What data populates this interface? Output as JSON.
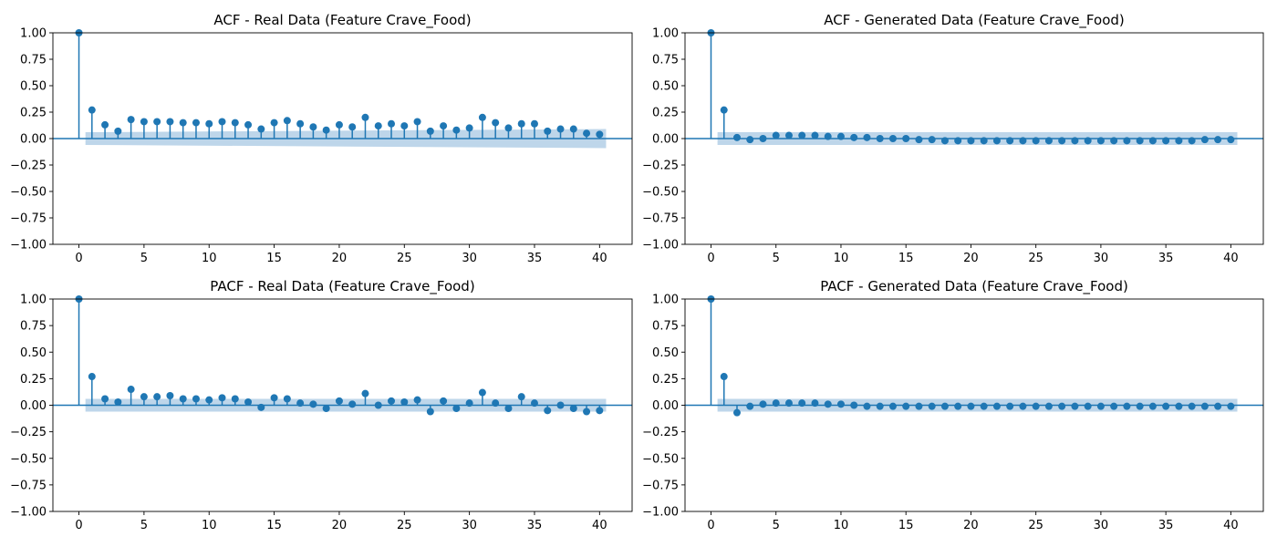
{
  "chart_data": [
    {
      "type": "stem",
      "title": "ACF - Real Data (Feature Crave_Food)",
      "xlabel": "",
      "ylabel": "",
      "xlim": [
        -2,
        42.5
      ],
      "ylim": [
        -1,
        1
      ],
      "xticks": [
        0,
        5,
        10,
        15,
        20,
        25,
        30,
        35,
        40
      ],
      "yticks": [
        -1.0,
        -0.75,
        -0.5,
        -0.25,
        0.0,
        0.25,
        0.5,
        0.75,
        1.0
      ],
      "ytick_labels": [
        "−1.00",
        "−0.75",
        "−0.50",
        "−0.25",
        "0.00",
        "0.25",
        "0.50",
        "0.75",
        "1.00"
      ],
      "xtick_labels": [
        "0",
        "5",
        "10",
        "15",
        "20",
        "25",
        "30",
        "35",
        "40"
      ],
      "confidence_band": {
        "from_lag": 0.5,
        "to_lag": 40.5,
        "upper": [
          0.06,
          0.09
        ],
        "lower": [
          -0.06,
          -0.09
        ]
      },
      "color": "#1f77b4",
      "band_color": "#b7d1e8",
      "lags": [
        0,
        1,
        2,
        3,
        4,
        5,
        6,
        7,
        8,
        9,
        10,
        11,
        12,
        13,
        14,
        15,
        16,
        17,
        18,
        19,
        20,
        21,
        22,
        23,
        24,
        25,
        26,
        27,
        28,
        29,
        30,
        31,
        32,
        33,
        34,
        35,
        36,
        37,
        38,
        39,
        40
      ],
      "values": [
        1.0,
        0.27,
        0.13,
        0.07,
        0.18,
        0.16,
        0.16,
        0.16,
        0.15,
        0.15,
        0.14,
        0.16,
        0.15,
        0.13,
        0.09,
        0.15,
        0.17,
        0.14,
        0.11,
        0.08,
        0.13,
        0.11,
        0.2,
        0.12,
        0.14,
        0.12,
        0.16,
        0.07,
        0.12,
        0.08,
        0.1,
        0.2,
        0.15,
        0.1,
        0.14,
        0.14,
        0.07,
        0.09,
        0.09,
        0.05,
        0.04
      ]
    },
    {
      "type": "stem",
      "title": "ACF - Generated Data (Feature Crave_Food)",
      "xlabel": "",
      "ylabel": "",
      "xlim": [
        -2,
        42.5
      ],
      "ylim": [
        -1,
        1
      ],
      "xticks": [
        0,
        5,
        10,
        15,
        20,
        25,
        30,
        35,
        40
      ],
      "yticks": [
        -1.0,
        -0.75,
        -0.5,
        -0.25,
        0.0,
        0.25,
        0.5,
        0.75,
        1.0
      ],
      "ytick_labels": [
        "−1.00",
        "−0.75",
        "−0.50",
        "−0.25",
        "0.00",
        "0.25",
        "0.50",
        "0.75",
        "1.00"
      ],
      "xtick_labels": [
        "0",
        "5",
        "10",
        "15",
        "20",
        "25",
        "30",
        "35",
        "40"
      ],
      "confidence_band": {
        "from_lag": 0.5,
        "to_lag": 40.5,
        "upper": [
          0.06,
          0.06
        ],
        "lower": [
          -0.06,
          -0.06
        ]
      },
      "color": "#1f77b4",
      "band_color": "#b7d1e8",
      "lags": [
        0,
        1,
        2,
        3,
        4,
        5,
        6,
        7,
        8,
        9,
        10,
        11,
        12,
        13,
        14,
        15,
        16,
        17,
        18,
        19,
        20,
        21,
        22,
        23,
        24,
        25,
        26,
        27,
        28,
        29,
        30,
        31,
        32,
        33,
        34,
        35,
        36,
        37,
        38,
        39,
        40
      ],
      "values": [
        1.0,
        0.27,
        0.01,
        -0.01,
        0.0,
        0.03,
        0.03,
        0.03,
        0.03,
        0.02,
        0.02,
        0.01,
        0.01,
        0.0,
        0.0,
        0.0,
        -0.01,
        -0.01,
        -0.02,
        -0.02,
        -0.02,
        -0.02,
        -0.02,
        -0.02,
        -0.02,
        -0.02,
        -0.02,
        -0.02,
        -0.02,
        -0.02,
        -0.02,
        -0.02,
        -0.02,
        -0.02,
        -0.02,
        -0.02,
        -0.02,
        -0.02,
        -0.01,
        -0.01,
        -0.01
      ]
    },
    {
      "type": "stem",
      "title": "PACF - Real Data (Feature Crave_Food)",
      "xlabel": "",
      "ylabel": "",
      "xlim": [
        -2,
        42.5
      ],
      "ylim": [
        -1,
        1
      ],
      "xticks": [
        0,
        5,
        10,
        15,
        20,
        25,
        30,
        35,
        40
      ],
      "yticks": [
        -1.0,
        -0.75,
        -0.5,
        -0.25,
        0.0,
        0.25,
        0.5,
        0.75,
        1.0
      ],
      "ytick_labels": [
        "−1.00",
        "−0.75",
        "−0.50",
        "−0.25",
        "0.00",
        "0.25",
        "0.50",
        "0.75",
        "1.00"
      ],
      "xtick_labels": [
        "0",
        "5",
        "10",
        "15",
        "20",
        "25",
        "30",
        "35",
        "40"
      ],
      "confidence_band": {
        "from_lag": 0.5,
        "to_lag": 40.5,
        "upper": [
          0.06,
          0.06
        ],
        "lower": [
          -0.06,
          -0.06
        ]
      },
      "color": "#1f77b4",
      "band_color": "#b7d1e8",
      "lags": [
        0,
        1,
        2,
        3,
        4,
        5,
        6,
        7,
        8,
        9,
        10,
        11,
        12,
        13,
        14,
        15,
        16,
        17,
        18,
        19,
        20,
        21,
        22,
        23,
        24,
        25,
        26,
        27,
        28,
        29,
        30,
        31,
        32,
        33,
        34,
        35,
        36,
        37,
        38,
        39,
        40
      ],
      "values": [
        1.0,
        0.27,
        0.06,
        0.03,
        0.15,
        0.08,
        0.08,
        0.09,
        0.06,
        0.06,
        0.05,
        0.07,
        0.06,
        0.03,
        -0.02,
        0.07,
        0.06,
        0.02,
        0.01,
        -0.03,
        0.04,
        0.01,
        0.11,
        0.0,
        0.04,
        0.03,
        0.05,
        -0.06,
        0.04,
        -0.03,
        0.02,
        0.12,
        0.02,
        -0.03,
        0.08,
        0.02,
        -0.05,
        0.0,
        -0.03,
        -0.06,
        -0.05
      ]
    },
    {
      "type": "stem",
      "title": "PACF - Generated Data (Feature Crave_Food)",
      "xlabel": "",
      "ylabel": "",
      "xlim": [
        -2,
        42.5
      ],
      "ylim": [
        -1,
        1
      ],
      "xticks": [
        0,
        5,
        10,
        15,
        20,
        25,
        30,
        35,
        40
      ],
      "yticks": [
        -1.0,
        -0.75,
        -0.5,
        -0.25,
        0.0,
        0.25,
        0.5,
        0.75,
        1.0
      ],
      "ytick_labels": [
        "−1.00",
        "−0.75",
        "−0.50",
        "−0.25",
        "0.00",
        "0.25",
        "0.50",
        "0.75",
        "1.00"
      ],
      "xtick_labels": [
        "0",
        "5",
        "10",
        "15",
        "20",
        "25",
        "30",
        "35",
        "40"
      ],
      "confidence_band": {
        "from_lag": 0.5,
        "to_lag": 40.5,
        "upper": [
          0.06,
          0.06
        ],
        "lower": [
          -0.06,
          -0.06
        ]
      },
      "color": "#1f77b4",
      "band_color": "#b7d1e8",
      "lags": [
        0,
        1,
        2,
        3,
        4,
        5,
        6,
        7,
        8,
        9,
        10,
        11,
        12,
        13,
        14,
        15,
        16,
        17,
        18,
        19,
        20,
        21,
        22,
        23,
        24,
        25,
        26,
        27,
        28,
        29,
        30,
        31,
        32,
        33,
        34,
        35,
        36,
        37,
        38,
        39,
        40
      ],
      "values": [
        1.0,
        0.27,
        -0.07,
        -0.01,
        0.01,
        0.02,
        0.02,
        0.02,
        0.02,
        0.01,
        0.01,
        0.0,
        -0.01,
        -0.01,
        -0.01,
        -0.01,
        -0.01,
        -0.01,
        -0.01,
        -0.01,
        -0.01,
        -0.01,
        -0.01,
        -0.01,
        -0.01,
        -0.01,
        -0.01,
        -0.01,
        -0.01,
        -0.01,
        -0.01,
        -0.01,
        -0.01,
        -0.01,
        -0.01,
        -0.01,
        -0.01,
        -0.01,
        -0.01,
        -0.01,
        -0.01
      ]
    }
  ]
}
